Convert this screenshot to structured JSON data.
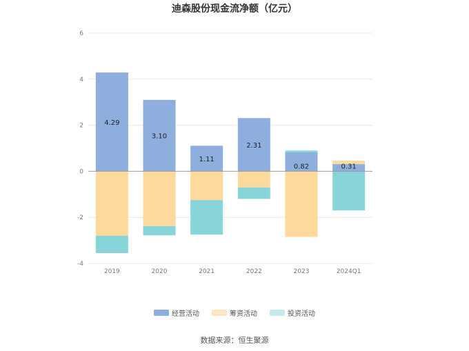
{
  "chart_data": {
    "type": "bar",
    "stacked": true,
    "title": "迪森股份现金流净额（亿元）",
    "categories": [
      "2019",
      "2020",
      "2021",
      "2022",
      "2023",
      "2024Q1"
    ],
    "series": [
      {
        "name": "经营活动",
        "color": "#8eaedd",
        "values": [
          4.29,
          3.1,
          1.11,
          2.31,
          0.82,
          0.31
        ]
      },
      {
        "name": "筹资活动",
        "color": "#fdd99b",
        "values": [
          -2.8,
          -2.38,
          -1.25,
          -0.7,
          -2.85,
          0.15
        ]
      },
      {
        "name": "投资活动",
        "color": "#88d5d9",
        "values": [
          -0.75,
          -0.4,
          -1.5,
          -0.5,
          0.08,
          -1.7
        ]
      }
    ],
    "data_labels": [
      "4.29",
      "3.10",
      "1.11",
      "2.31",
      "0.82",
      "0.31"
    ],
    "yticks": [
      6,
      4,
      2,
      0,
      -2,
      -4
    ],
    "ylim": [
      -4,
      6
    ],
    "xlabel": "",
    "ylabel": "",
    "grid": true,
    "legend_position": "bottom-center"
  },
  "legend": {
    "items": [
      {
        "label": "经营活动",
        "color": "#8eaedd"
      },
      {
        "label": "筹资活动",
        "color": "#fdd99b"
      },
      {
        "label": "投资活动",
        "color": "#c6eaec"
      }
    ]
  },
  "source": "数据来源：恒生聚源"
}
